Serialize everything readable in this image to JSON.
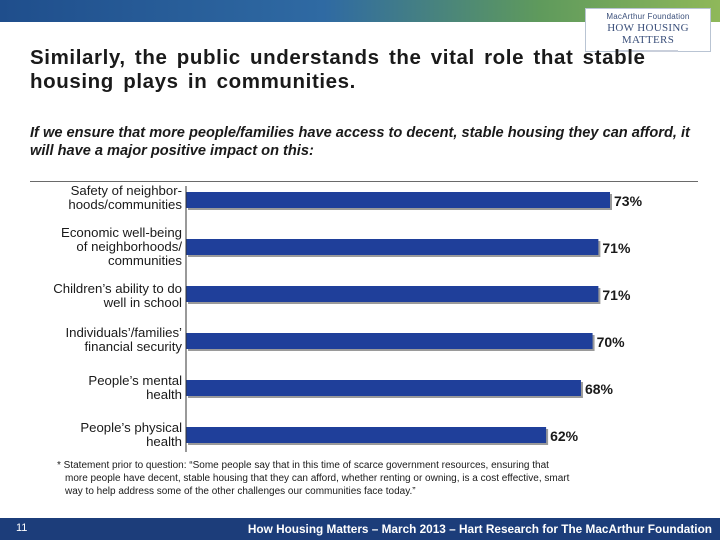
{
  "header": {
    "logo_line1": "MacArthur Foundation",
    "logo_line2": "HOW HOUSING MATTERS"
  },
  "slide": {
    "title": "Similarly, the public understands the vital role that stable housing plays in communities.",
    "question": "If we ensure that more people/families have access to decent, stable housing they can afford, it will have a major positive impact on this:"
  },
  "chart_data": {
    "type": "bar",
    "orientation": "horizontal",
    "categories": [
      "Safety of neighbor-\nhoods/communities",
      "Economic well-being\nof neighborhoods/\ncommunities",
      "Children’s ability to do\nwell in school",
      "Individuals’/families’\nfinancial security",
      "People’s mental\nhealth",
      "People’s physical\nhealth"
    ],
    "values": [
      73,
      71,
      71,
      70,
      68,
      62
    ],
    "value_labels": [
      "73%",
      "71%",
      "71%",
      "70%",
      "68%",
      "62%"
    ],
    "xlim": [
      0,
      73
    ],
    "bar_color": "#1f3f9a",
    "grid": false
  },
  "footnote": {
    "line1": "*   Statement prior to question:  “Some people say that in this time of scarce government resources, ensuring that",
    "line2": "more people have decent, stable housing that they can afford, whether renting or owning, is a cost effective, smart",
    "line3": "way to help address some of the other challenges our communities face today.”"
  },
  "footer": {
    "page_number": "11",
    "text": "How Housing Matters – March 2013 – Hart Research for The MacArthur Foundation"
  }
}
